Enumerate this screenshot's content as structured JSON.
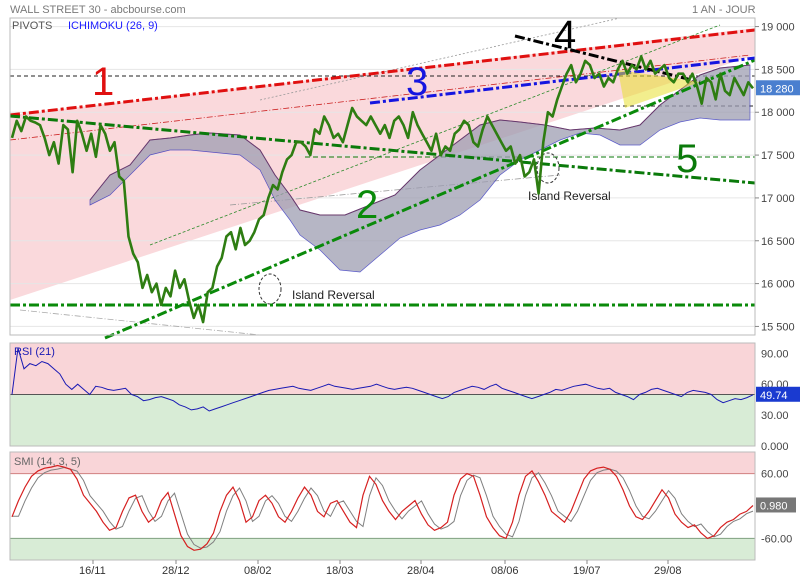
{
  "header": {
    "title": "WALL STREET 30 - abcbourse.com",
    "period": "1 AN - JOUR",
    "indicator_pivots": "PIVOTS",
    "indicator_ichimoku": "ICHIMOKU (26, 9)"
  },
  "colors": {
    "price_line": "#2e7d12",
    "cloud_fill": "#9e9eb2",
    "kijun": "#2323b8",
    "rsi_line": "#1a1ab4",
    "smi_main": "#d62020",
    "smi_signal": "#808080",
    "upper_zone": "#f9d5d8",
    "lower_zone": "#d8ecd6",
    "line_1": "#e01010",
    "line_2": "#0a8a0a",
    "line_3": "#1515e0",
    "line_4": "#000000",
    "line_5": "#0a7a0a",
    "price_box": "#4a7fcf"
  },
  "chart_data": [
    {
      "type": "line",
      "panel": "price",
      "title": "WALL STREET 30 - abcbourse.com",
      "ylim": [
        15400,
        19100
      ],
      "y_ticks": [
        "19 000",
        "18 500",
        "18 000",
        "17 500",
        "17 000",
        "16 500",
        "16 000",
        "15 500"
      ],
      "y_tick_values": [
        19000,
        18500,
        18000,
        17500,
        17000,
        16500,
        16000,
        15500
      ],
      "x_tick_labels": [
        "16/11",
        "28/12",
        "08/02",
        "18/03",
        "28/04",
        "08/06",
        "19/07",
        "29/08"
      ],
      "last_price_label": "18 280",
      "last_price": 18280,
      "trendline_labels": [
        "1",
        "2",
        "3",
        "4",
        "5"
      ],
      "annotations": [
        "Island Reversal",
        "Island Reversal"
      ],
      "series": [
        {
          "values": [
            17700,
            17900,
            17780,
            17950,
            17900,
            17880,
            17850,
            17700,
            17500,
            17650,
            17400,
            17850,
            17800,
            17300,
            17900,
            17750,
            17550,
            17750,
            17480,
            17850,
            17750,
            17550,
            17650,
            17250,
            17200,
            16550,
            16350,
            16250,
            15950,
            16100,
            15900,
            16000,
            15750,
            15950,
            15850,
            16150,
            15950,
            16050,
            15800,
            15600,
            15750,
            15550,
            15900,
            15950,
            16200,
            16300,
            16550,
            16600,
            16400,
            16650,
            16450,
            16500,
            16600,
            16750,
            16800,
            17000,
            17150,
            17100,
            17300,
            17450,
            17500,
            17650,
            17650,
            17600,
            17500,
            17800,
            17750,
            17950,
            17850,
            17700,
            17750,
            17650,
            17850,
            18050,
            17950,
            17900,
            17850,
            17950,
            17850,
            17750,
            17850,
            17700,
            17900,
            17950,
            17850,
            17700,
            18000,
            17850,
            17750,
            17650,
            17550,
            17750,
            17500,
            17600,
            17550,
            17750,
            17800,
            17900,
            17850,
            17650,
            17600,
            17800,
            17950,
            17850,
            17750,
            17650,
            17550,
            17600,
            17400,
            17500,
            17250,
            17300,
            17450,
            17050,
            17650,
            18000,
            17950,
            18150,
            18300,
            18450,
            18550,
            18350,
            18450,
            18600,
            18550,
            18400,
            18450,
            18300,
            18400,
            18350,
            18500,
            18600,
            18450,
            18550,
            18500,
            18650,
            18500,
            18600,
            18450,
            18500,
            18550,
            18400,
            18350,
            18450,
            18450,
            18350,
            18450,
            18300,
            18100,
            18400,
            18350,
            18150,
            18450,
            18250,
            18200,
            18400,
            18300,
            18200,
            18350,
            18280
          ]
        }
      ]
    },
    {
      "type": "line",
      "panel": "rsi",
      "title": "RSI (21)",
      "ylim": [
        0,
        100
      ],
      "y_ticks": [
        "90.00",
        "60.00",
        "30.00",
        "0.000"
      ],
      "y_tick_values": [
        90,
        60,
        30,
        0
      ],
      "last_value_label": "49.74",
      "series": [
        {
          "values": [
            50,
            95,
            75,
            80,
            78,
            82,
            80,
            75,
            70,
            60,
            55,
            60,
            55,
            50,
            58,
            57,
            55,
            54,
            55,
            56,
            50,
            48,
            44,
            45,
            47,
            48,
            46,
            44,
            40,
            38,
            35,
            36,
            38,
            34,
            36,
            38,
            40,
            42,
            44,
            46,
            48,
            50,
            52,
            54,
            55,
            56,
            57,
            58,
            56,
            55,
            54,
            56,
            58,
            60,
            58,
            57,
            56,
            55,
            56,
            57,
            58,
            60,
            58,
            56,
            55,
            56,
            57,
            56,
            54,
            52,
            50,
            48,
            46,
            48,
            52,
            54,
            56,
            58,
            57,
            55,
            58,
            60,
            56,
            54,
            52,
            50,
            48,
            46,
            48,
            50,
            52,
            55,
            54,
            56,
            58,
            59,
            60,
            58,
            56,
            55,
            56,
            52,
            50,
            48,
            45,
            50,
            52,
            55,
            56,
            54,
            52,
            50,
            48,
            52,
            54,
            53,
            52,
            50,
            45,
            42,
            44,
            46,
            45,
            47,
            49.74
          ]
        }
      ]
    },
    {
      "type": "line",
      "panel": "smi",
      "title": "SMI (14, 3, 5)",
      "ylim": [
        -100,
        100
      ],
      "y_ticks": [
        "60.00",
        "-60.00"
      ],
      "y_tick_values": [
        60,
        -60
      ],
      "last_value_label": "0.980",
      "series": [
        {
          "values": [
            -20,
            10,
            35,
            55,
            65,
            70,
            72,
            75,
            72,
            68,
            50,
            20,
            5,
            -10,
            -30,
            -45,
            -40,
            -10,
            15,
            20,
            -10,
            -30,
            -20,
            10,
            25,
            -15,
            -55,
            -75,
            -82,
            -80,
            -70,
            -50,
            -10,
            20,
            35,
            10,
            -30,
            -20,
            10,
            20,
            5,
            -20,
            -30,
            -10,
            15,
            35,
            20,
            -10,
            -20,
            5,
            10,
            -10,
            -30,
            -40,
            20,
            55,
            40,
            10,
            -10,
            -25,
            -10,
            0,
            10,
            -15,
            -35,
            -45,
            -40,
            -30,
            20,
            50,
            60,
            55,
            20,
            -20,
            -40,
            -55,
            -60,
            -30,
            20,
            55,
            65,
            45,
            20,
            -10,
            -20,
            -30,
            -10,
            20,
            50,
            65,
            70,
            72,
            68,
            55,
            30,
            0,
            -20,
            -25,
            -10,
            10,
            30,
            15,
            -15,
            -30,
            -40,
            -35,
            -50,
            -60,
            -55,
            -40,
            -30,
            -25,
            -15,
            -10,
            0.98
          ]
        }
      ]
    }
  ],
  "x_axis": {
    "labels": [
      "16/11",
      "28/12",
      "08/02",
      "18/03",
      "28/04",
      "08/06",
      "19/07",
      "29/08"
    ]
  }
}
